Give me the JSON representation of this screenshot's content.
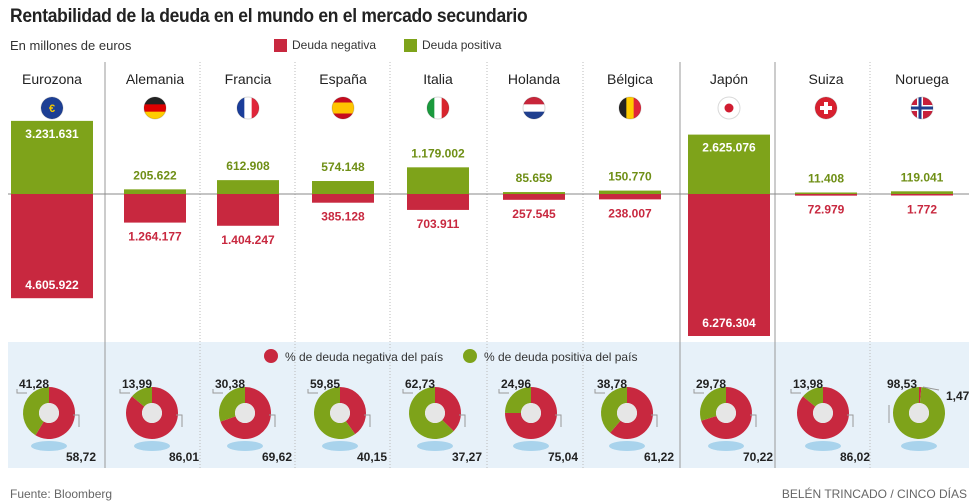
{
  "title": "Rentabilidad de la deuda en el mundo en el mercado secundario",
  "subtitle": "En millones de euros",
  "legend": {
    "negative": "Deuda negativa",
    "positive": "Deuda positiva"
  },
  "donut_legend": {
    "negative": "% de deuda negativa del país",
    "positive": "% de deuda positiva del país"
  },
  "source": "Fuente: Bloomberg",
  "credit": "BELÉN TRINCADO / CINCO DÍAS",
  "colors": {
    "negative": "#c8283f",
    "positive": "#7ea31a",
    "panel": "#e7f1f9"
  },
  "chart_data": [
    {
      "type": "bar",
      "categories": [
        "Eurozona",
        "Alemania",
        "Francia",
        "España",
        "Italia",
        "Holanda",
        "Bélgica",
        "Japón",
        "Suiza",
        "Noruega"
      ],
      "flags": [
        "eu",
        "de",
        "fr",
        "es",
        "it",
        "nl",
        "be",
        "jp",
        "ch",
        "no"
      ],
      "series": [
        {
          "name": "Deuda positiva",
          "values": [
            3231631,
            205622,
            612908,
            574148,
            1179002,
            85659,
            150770,
            2625076,
            11408,
            119041
          ],
          "labels": [
            "3.231.631",
            "205.622",
            "612.908",
            "574.148",
            "1.179.002",
            "85.659",
            "150.770",
            "2.625.076",
            "11.408",
            "119.041"
          ]
        },
        {
          "name": "Deuda negativa",
          "values": [
            -4605922,
            -1264177,
            -1404247,
            -385128,
            -703911,
            -257545,
            -238007,
            -6276304,
            -72979,
            -1772
          ],
          "labels": [
            "4.605.922",
            "1.264.177",
            "1.404.247",
            "385.128",
            "703.911",
            "257.545",
            "238.007",
            "6.276.304",
            "72.979",
            "1.772"
          ]
        }
      ]
    },
    {
      "type": "pie",
      "categories": [
        "Eurozona",
        "Alemania",
        "Francia",
        "España",
        "Italia",
        "Holanda",
        "Bélgica",
        "Japón",
        "Suiza",
        "Noruega"
      ],
      "series": [
        {
          "name": "% de deuda positiva del país",
          "values": [
            41.28,
            13.99,
            30.38,
            59.85,
            62.73,
            24.96,
            38.78,
            29.78,
            13.98,
            98.53
          ],
          "labels": [
            "41,28",
            "13,99",
            "30,38",
            "59,85",
            "62,73",
            "24,96",
            "38,78",
            "29,78",
            "13,98",
            "98,53"
          ]
        },
        {
          "name": "% de deuda negativa del país",
          "values": [
            58.72,
            86.01,
            69.62,
            40.15,
            37.27,
            75.04,
            61.22,
            70.22,
            86.02,
            1.47
          ],
          "labels": [
            "58,72",
            "86,01",
            "69,62",
            "40,15",
            "37,27",
            "75,04",
            "61,22",
            "70,22",
            "86,02",
            "1,47"
          ]
        }
      ]
    }
  ]
}
